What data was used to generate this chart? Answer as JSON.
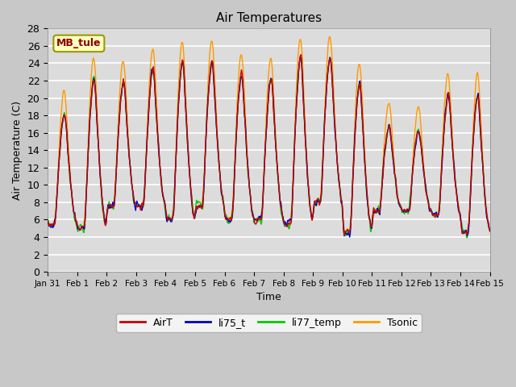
{
  "title": "Air Temperatures",
  "xlabel": "Time",
  "ylabel": "Air Temperature (C)",
  "ylim": [
    0,
    28
  ],
  "yticks": [
    0,
    2,
    4,
    6,
    8,
    10,
    12,
    14,
    16,
    18,
    20,
    22,
    24,
    26,
    28
  ],
  "station_label": "MB_tule",
  "x_tick_labels": [
    "Jan 31",
    "Feb 1",
    "Feb 2",
    "Feb 3",
    "Feb 4",
    "Feb 5",
    "Feb 6",
    "Feb 7",
    "Feb 8",
    "Feb 9",
    "Feb 10",
    "Feb 11",
    "Feb 12",
    "Feb 13",
    "Feb 14",
    "Feb 15"
  ],
  "colors": {
    "AirT": "#cc0000",
    "li75_t": "#0000cc",
    "li77_temp": "#00cc00",
    "Tsonic": "#ff9900"
  },
  "fig_bg_color": "#c8c8c8",
  "plot_bg_color": "#dcdcdc",
  "grid_color": "#ffffff",
  "legend_labels": [
    "AirT",
    "li75_t",
    "li77_temp",
    "Tsonic"
  ]
}
